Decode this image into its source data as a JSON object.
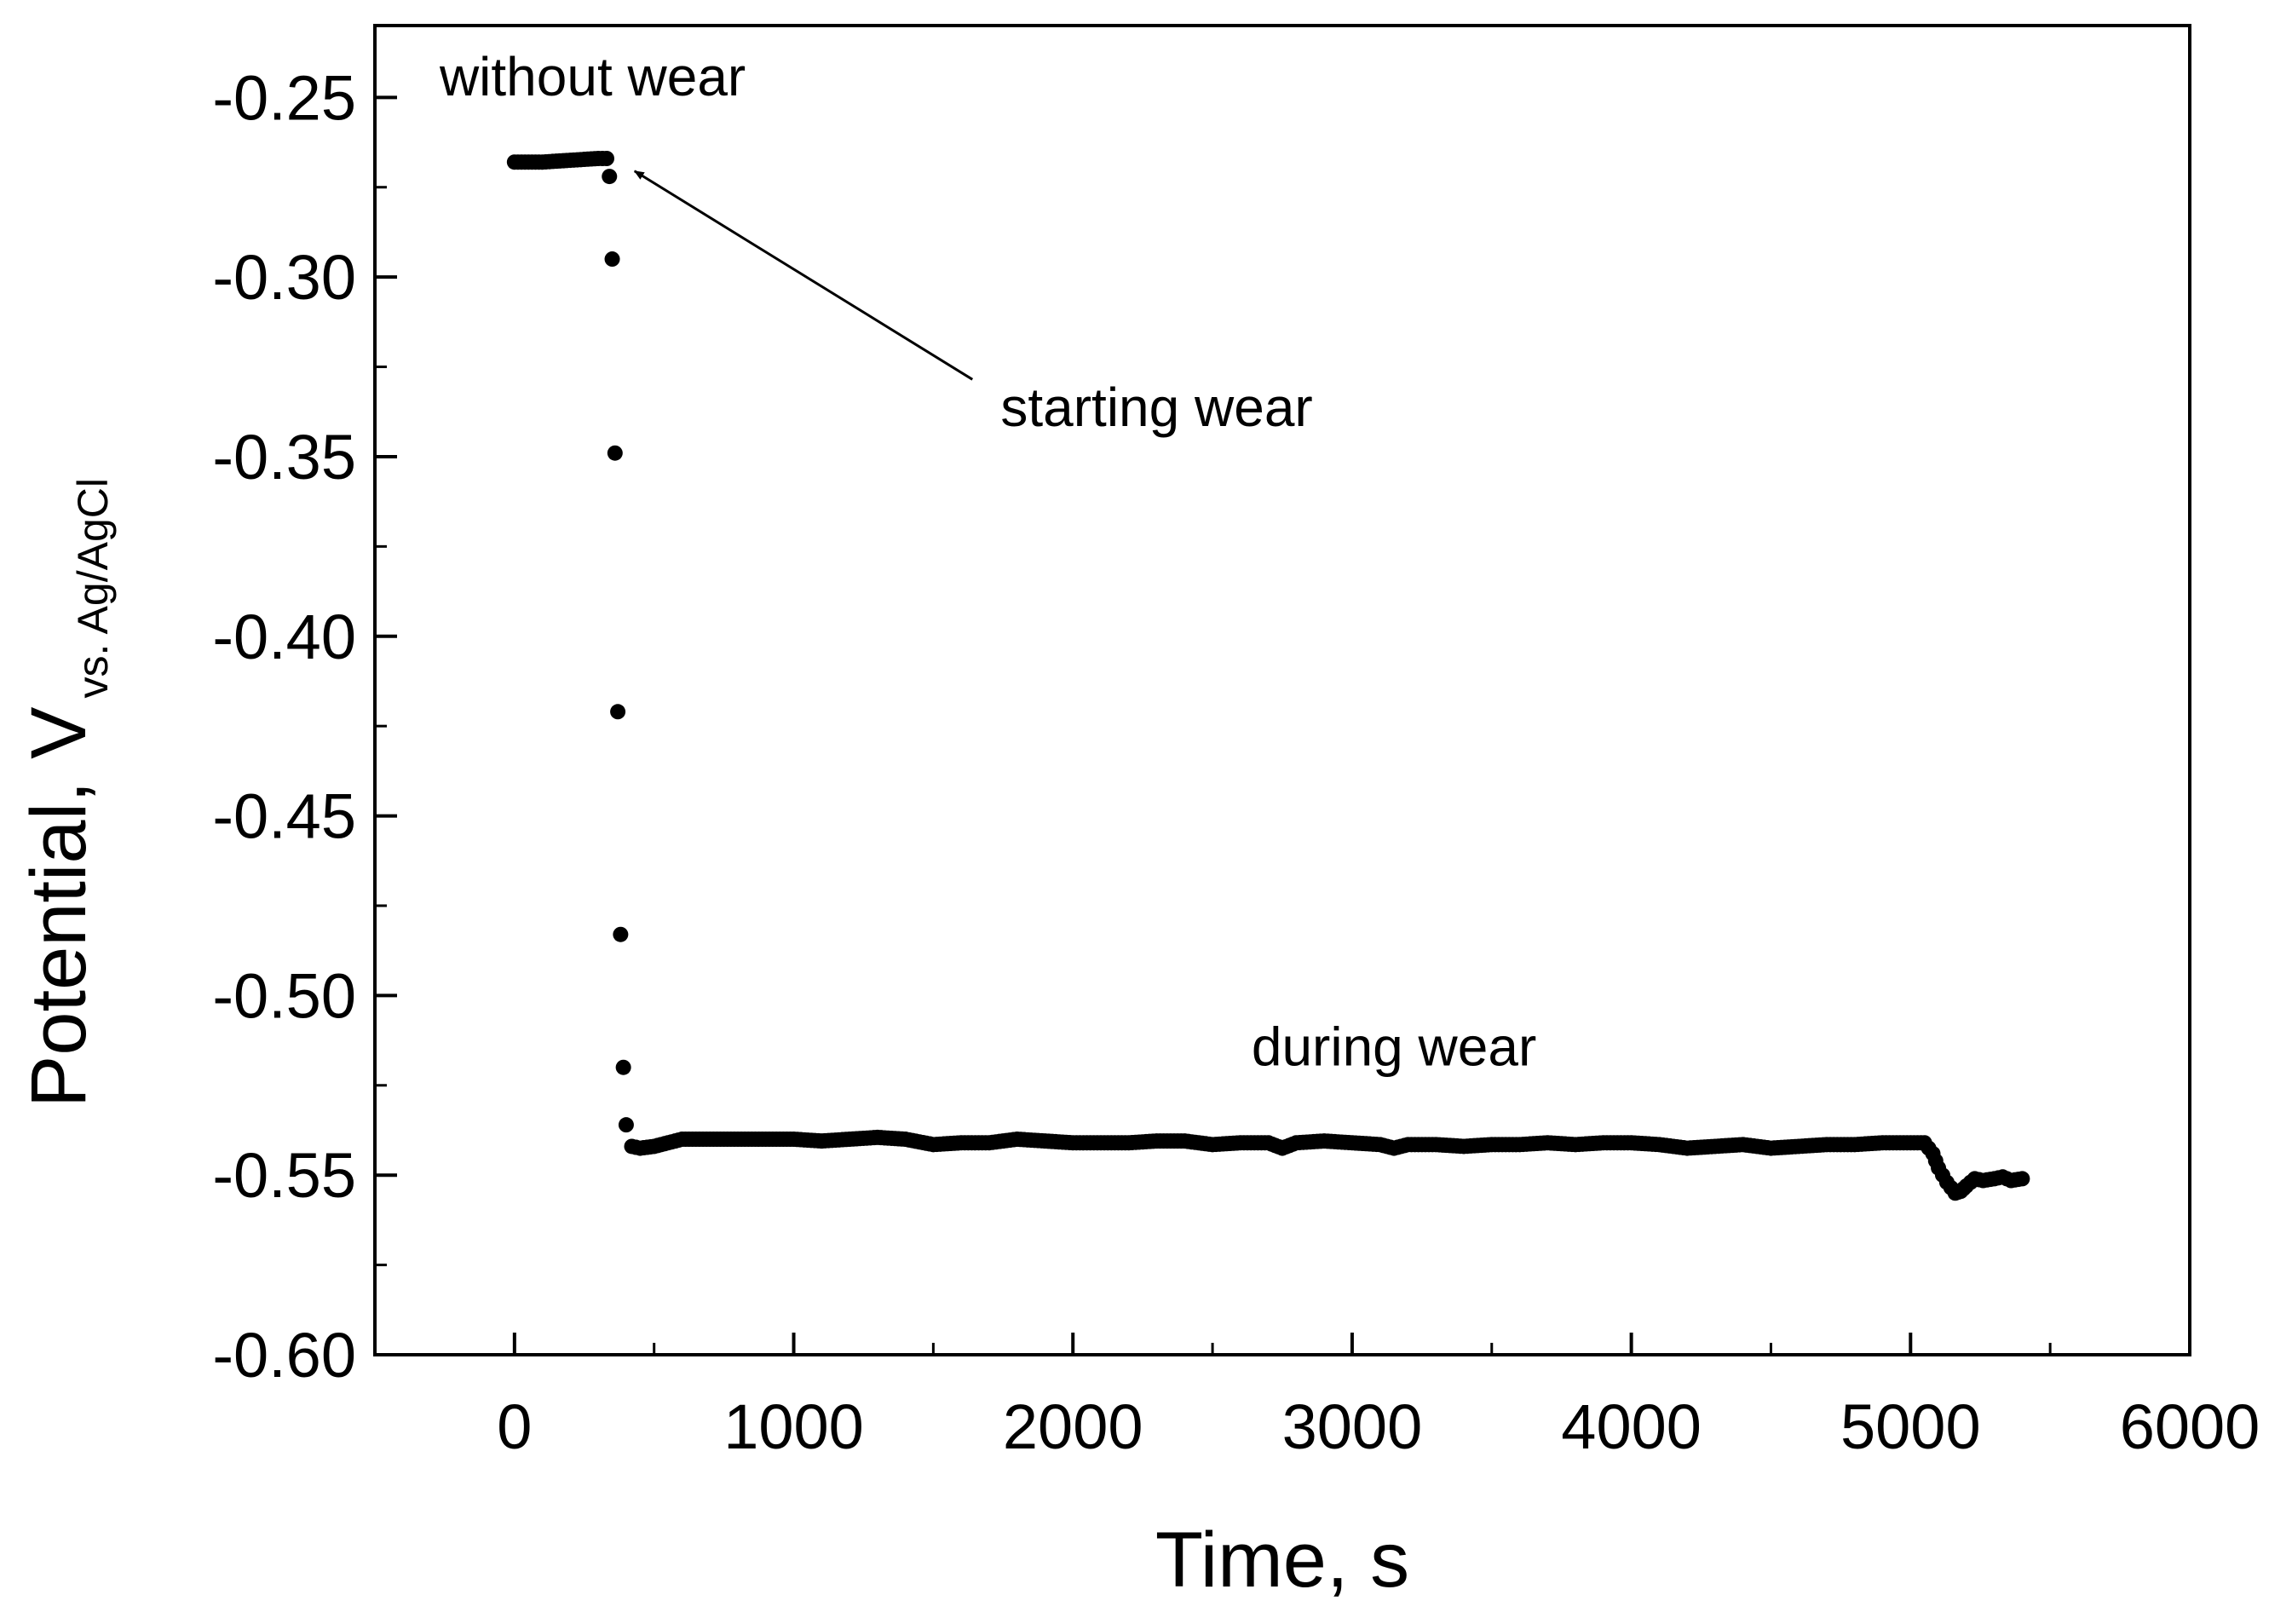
{
  "chart_data": {
    "type": "scatter",
    "title": "",
    "xlabel": "Time, s",
    "ylabel_main": "Potential, V",
    "ylabel_sub": "vs. Ag/AgCl",
    "xlim": [
      -500,
      6000
    ],
    "ylim": [
      -0.6,
      -0.23
    ],
    "xticks": [
      0,
      1000,
      2000,
      3000,
      4000,
      5000,
      6000
    ],
    "xtick_labels": [
      "0",
      "1000",
      "2000",
      "3000",
      "4000",
      "5000",
      "6000"
    ],
    "yticks": [
      -0.25,
      -0.3,
      -0.35,
      -0.4,
      -0.45,
      -0.5,
      -0.55,
      -0.6
    ],
    "ytick_labels": [
      "-0.25",
      "-0.30",
      "-0.35",
      "-0.40",
      "-0.45",
      "-0.50",
      "-0.55",
      "-0.60"
    ],
    "grid": false,
    "series": [
      {
        "name": "Potential",
        "color": "#000000",
        "x": [
          0,
          100,
          200,
          300,
          330,
          340,
          350,
          360,
          370,
          380,
          390,
          400,
          420,
          450,
          500,
          600,
          700,
          800,
          900,
          1000,
          1100,
          1200,
          1300,
          1400,
          1500,
          1600,
          1700,
          1800,
          1900,
          2000,
          2100,
          2200,
          2300,
          2400,
          2500,
          2600,
          2700,
          2750,
          2800,
          2900,
          3000,
          3100,
          3150,
          3200,
          3300,
          3400,
          3500,
          3600,
          3700,
          3800,
          3900,
          4000,
          4100,
          4200,
          4300,
          4400,
          4500,
          4600,
          4700,
          4800,
          4900,
          5000,
          5050,
          5080,
          5100,
          5130,
          5160,
          5180,
          5200,
          5230,
          5260,
          5300,
          5330,
          5360,
          5400
        ],
        "y": [
          -0.268,
          -0.268,
          -0.2675,
          -0.267,
          -0.267,
          -0.272,
          -0.295,
          -0.349,
          -0.421,
          -0.483,
          -0.52,
          -0.536,
          -0.542,
          -0.5425,
          -0.542,
          -0.54,
          -0.54,
          -0.54,
          -0.54,
          -0.54,
          -0.5405,
          -0.54,
          -0.5395,
          -0.54,
          -0.5415,
          -0.541,
          -0.541,
          -0.54,
          -0.5405,
          -0.541,
          -0.541,
          -0.541,
          -0.5405,
          -0.5405,
          -0.5415,
          -0.541,
          -0.541,
          -0.5425,
          -0.541,
          -0.5405,
          -0.541,
          -0.5415,
          -0.5425,
          -0.5415,
          -0.5415,
          -0.542,
          -0.5415,
          -0.5415,
          -0.541,
          -0.5415,
          -0.541,
          -0.541,
          -0.5415,
          -0.5425,
          -0.542,
          -0.5415,
          -0.5425,
          -0.542,
          -0.5415,
          -0.5415,
          -0.541,
          -0.541,
          -0.541,
          -0.544,
          -0.548,
          -0.552,
          -0.555,
          -0.5545,
          -0.553,
          -0.551,
          -0.5515,
          -0.551,
          -0.5505,
          -0.5515,
          -0.551
        ]
      }
    ],
    "annotations": [
      {
        "text": "without wear",
        "x": 280,
        "y": -0.2495
      },
      {
        "text": "starting wear",
        "x": 2300,
        "y": -0.3415,
        "arrow_to_x": 430,
        "arrow_to_y": -0.2705,
        "arrow_from_x": 1640,
        "arrow_from_y": -0.3285
      },
      {
        "text": "during wear",
        "x": 3150,
        "y": -0.5195
      }
    ]
  }
}
